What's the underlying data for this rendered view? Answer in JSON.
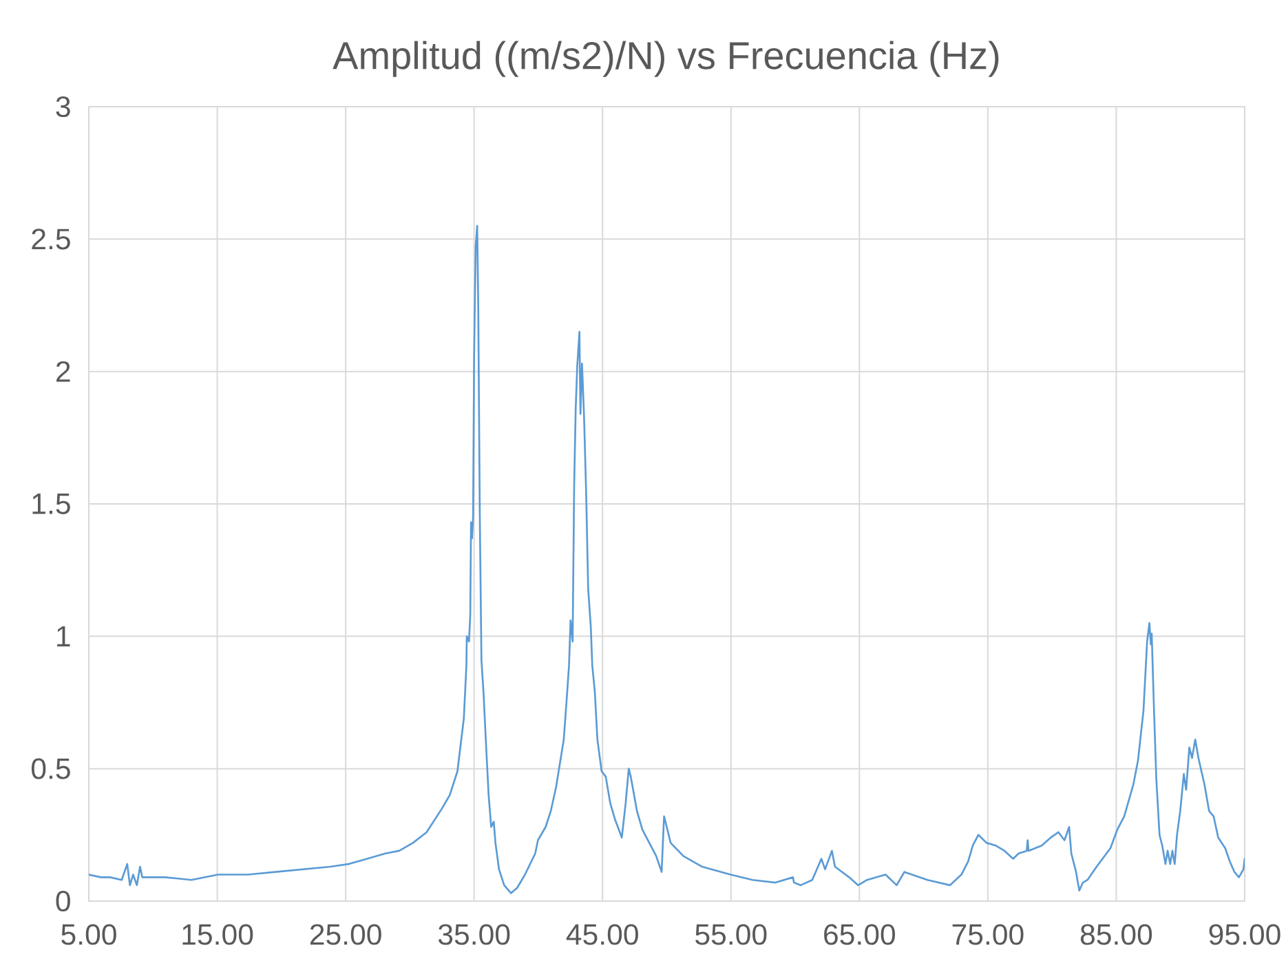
{
  "chart_data": {
    "type": "line",
    "title": "Amplitud ((m/s2)/N) vs Frecuencia (Hz)",
    "x": [
      5.0,
      5.95,
      6.66,
      7.56,
      7.99,
      8.2,
      8.45,
      8.74,
      8.99,
      9.16,
      10.95,
      12.99,
      15.06,
      17.38,
      19.53,
      21.67,
      23.81,
      25.24,
      26.67,
      28.1,
      29.17,
      30.24,
      31.3,
      32.5,
      33.1,
      33.7,
      33.9,
      34.2,
      34.4,
      34.43,
      34.6,
      34.7,
      34.76,
      34.84,
      34.92,
      35.0,
      35.12,
      35.24,
      35.32,
      35.44,
      35.57,
      35.73,
      35.93,
      36.13,
      36.33,
      36.53,
      36.66,
      36.94,
      37.34,
      37.87,
      38.35,
      38.96,
      39.76,
      39.97,
      40.57,
      40.97,
      41.38,
      41.78,
      41.98,
      42.19,
      42.39,
      42.51,
      42.67,
      42.79,
      42.91,
      43.03,
      43.2,
      43.28,
      43.4,
      43.56,
      43.72,
      43.88,
      44.08,
      44.2,
      44.4,
      44.6,
      44.93,
      45.25,
      45.6,
      45.96,
      46.5,
      46.8,
      47.04,
      47.2,
      47.68,
      48.1,
      48.64,
      49.18,
      49.6,
      49.79,
      50.0,
      50.3,
      51.3,
      52.75,
      54.97,
      56.68,
      58.47,
      59.83,
      59.9,
      60.43,
      61.33,
      62.04,
      62.33,
      62.86,
      63.1,
      63.65,
      64.2,
      64.9,
      65.6,
      67.04,
      67.9,
      68.5,
      70.3,
      72.05,
      72.94,
      73.47,
      73.83,
      74.26,
      74.9,
      75.6,
      76.3,
      76.97,
      77.4,
      78.03,
      78.1,
      78.17,
      79.2,
      79.9,
      80.5,
      80.97,
      81.33,
      81.5,
      81.87,
      82.12,
      82.4,
      82.76,
      83.47,
      84.55,
      85.08,
      85.62,
      86.33,
      86.69,
      87.12,
      87.4,
      87.58,
      87.69,
      87.76,
      87.94,
      88.12,
      88.37,
      88.58,
      88.83,
      89.0,
      89.2,
      89.37,
      89.55,
      89.73,
      89.98,
      90.26,
      90.44,
      90.69,
      90.9,
      91.15,
      91.4,
      91.87,
      92.23,
      92.58,
      92.94,
      93.48,
      93.84,
      94.2,
      94.55,
      94.9,
      95.0
    ],
    "values": [
      0.1,
      0.09,
      0.09,
      0.08,
      0.14,
      0.06,
      0.1,
      0.06,
      0.13,
      0.09,
      0.09,
      0.08,
      0.1,
      0.1,
      0.11,
      0.12,
      0.13,
      0.14,
      0.16,
      0.18,
      0.19,
      0.22,
      0.26,
      0.35,
      0.4,
      0.49,
      0.57,
      0.69,
      0.89,
      1.0,
      0.98,
      1.08,
      1.43,
      1.37,
      1.45,
      2.06,
      2.47,
      2.55,
      2.26,
      1.47,
      0.91,
      0.79,
      0.59,
      0.4,
      0.28,
      0.3,
      0.22,
      0.12,
      0.06,
      0.03,
      0.05,
      0.1,
      0.18,
      0.23,
      0.28,
      0.34,
      0.43,
      0.55,
      0.61,
      0.75,
      0.89,
      1.06,
      0.98,
      1.57,
      1.86,
      2.02,
      2.15,
      1.84,
      2.03,
      1.83,
      1.55,
      1.18,
      1.04,
      0.89,
      0.79,
      0.61,
      0.49,
      0.47,
      0.37,
      0.31,
      0.24,
      0.37,
      0.5,
      0.47,
      0.34,
      0.27,
      0.22,
      0.17,
      0.11,
      0.32,
      0.28,
      0.22,
      0.17,
      0.13,
      0.1,
      0.08,
      0.07,
      0.09,
      0.07,
      0.06,
      0.08,
      0.16,
      0.12,
      0.19,
      0.13,
      0.11,
      0.09,
      0.06,
      0.08,
      0.1,
      0.06,
      0.11,
      0.08,
      0.06,
      0.1,
      0.15,
      0.21,
      0.25,
      0.22,
      0.21,
      0.19,
      0.16,
      0.18,
      0.19,
      0.23,
      0.19,
      0.21,
      0.24,
      0.26,
      0.23,
      0.28,
      0.18,
      0.11,
      0.04,
      0.07,
      0.08,
      0.13,
      0.2,
      0.27,
      0.32,
      0.44,
      0.53,
      0.72,
      0.98,
      1.05,
      0.97,
      1.01,
      0.72,
      0.46,
      0.25,
      0.21,
      0.14,
      0.19,
      0.14,
      0.19,
      0.14,
      0.25,
      0.34,
      0.48,
      0.42,
      0.58,
      0.54,
      0.61,
      0.54,
      0.44,
      0.34,
      0.32,
      0.24,
      0.2,
      0.15,
      0.11,
      0.09,
      0.12,
      0.16
    ],
    "color": "#5b9bd5",
    "xlim": [
      5,
      95
    ],
    "xticks": [
      {
        "value": 5,
        "label": "5.00"
      },
      {
        "value": 15,
        "label": "15.00"
      },
      {
        "value": 25,
        "label": "25.00"
      },
      {
        "value": 35,
        "label": "35.00"
      },
      {
        "value": 45,
        "label": "45.00"
      },
      {
        "value": 55,
        "label": "55.00"
      },
      {
        "value": 65,
        "label": "65.00"
      },
      {
        "value": 75,
        "label": "75.00"
      },
      {
        "value": 85,
        "label": "85.00"
      },
      {
        "value": 95,
        "label": "95.00"
      }
    ],
    "ylim": [
      0,
      3
    ],
    "yticks": [
      0,
      0.5,
      1,
      1.5,
      2,
      2.5,
      3
    ],
    "grid": true,
    "marker": "none",
    "line_style": "solid"
  }
}
